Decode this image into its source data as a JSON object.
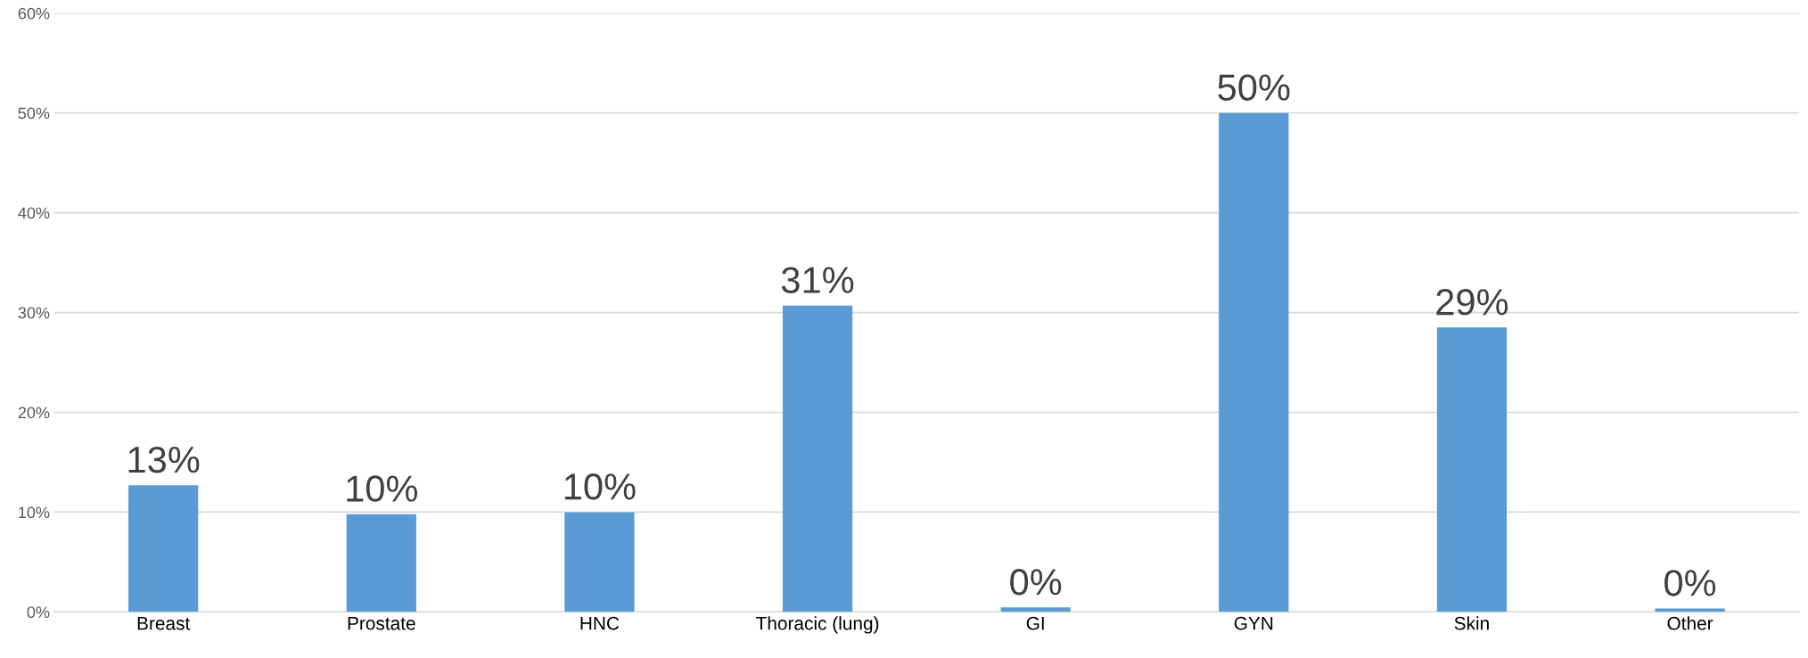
{
  "chart_data": {
    "type": "bar",
    "categories": [
      "Breast",
      "Prostate",
      "HNC",
      "Thoracic (lung)",
      "GI",
      "GYN",
      "Skin",
      "Other"
    ],
    "values": [
      12.7,
      9.8,
      10.0,
      30.7,
      0.45,
      50.0,
      28.5,
      0.35
    ],
    "value_labels": [
      "13%",
      "10%",
      "10%",
      "31%",
      "0%",
      "50%",
      "29%",
      "0%"
    ],
    "color": "#5b9bd5",
    "ylim": [
      0,
      60
    ],
    "yticks": [
      {
        "value": 0,
        "label": "0%"
      },
      {
        "value": 10,
        "label": "10%"
      },
      {
        "value": 20,
        "label": "20%"
      },
      {
        "value": 30,
        "label": "30%"
      },
      {
        "value": 40,
        "label": "40%"
      },
      {
        "value": 50,
        "label": "50%"
      },
      {
        "value": 60,
        "label": "60%"
      }
    ],
    "grid": "y",
    "legend": false
  }
}
